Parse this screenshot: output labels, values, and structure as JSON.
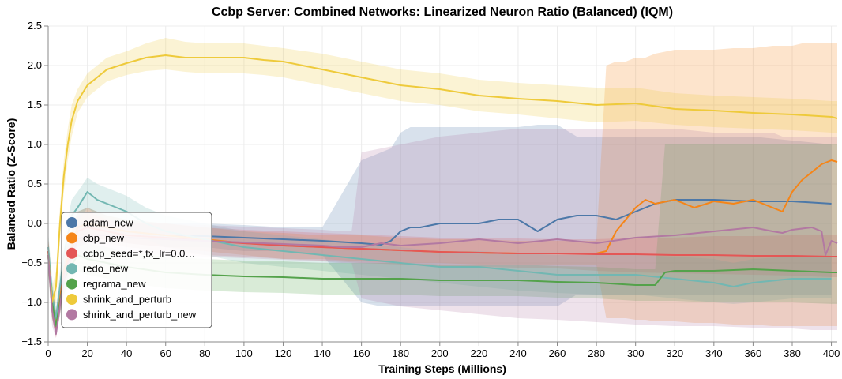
{
  "chart_data": {
    "type": "line",
    "title": "Ccbp Server: Combined Networks: Linearized Neuron Ratio (Balanced) (IQM)",
    "xlabel": "Training Steps (Millions)",
    "ylabel": "Balanced Ratio (Z-Score)",
    "xlim": [
      0,
      403
    ],
    "ylim": [
      -1.5,
      2.5
    ],
    "xticks": [
      0,
      20,
      40,
      60,
      80,
      100,
      120,
      140,
      160,
      180,
      200,
      220,
      240,
      260,
      280,
      300,
      320,
      340,
      360,
      380,
      400
    ],
    "yticks": [
      -1.5,
      -1.0,
      -0.5,
      0.0,
      0.5,
      1.0,
      1.5,
      2.0,
      2.5
    ],
    "ytick_labels": [
      "−1.5",
      "−1.0",
      "−0.5",
      "0.0",
      "0.5",
      "1.0",
      "1.5",
      "2.0",
      "2.5"
    ],
    "grid": true,
    "legend_position": "bottom-left",
    "series": [
      {
        "name": "adam_new",
        "color": "#4c78a8",
        "x": [
          0,
          2,
          4,
          8,
          15,
          20,
          30,
          40,
          60,
          80,
          100,
          120,
          140,
          160,
          170,
          175,
          180,
          185,
          190,
          200,
          210,
          220,
          230,
          240,
          250,
          260,
          270,
          280,
          290,
          300,
          310,
          320,
          340,
          360,
          380,
          400
        ],
        "y": [
          -0.4,
          -1.0,
          -1.3,
          -0.6,
          -0.05,
          0.0,
          -0.05,
          -0.1,
          -0.15,
          -0.16,
          -0.18,
          -0.2,
          -0.22,
          -0.25,
          -0.27,
          -0.22,
          -0.1,
          -0.05,
          -0.05,
          0.0,
          0.0,
          0.0,
          0.05,
          0.05,
          -0.1,
          0.05,
          0.1,
          0.1,
          0.05,
          0.15,
          0.25,
          0.3,
          0.3,
          0.28,
          0.28,
          0.25
        ],
        "lower": [
          -0.6,
          -1.2,
          -1.4,
          -0.8,
          -0.25,
          -0.2,
          -0.2,
          -0.25,
          -0.3,
          -0.3,
          -0.35,
          -0.35,
          -0.4,
          -1.0,
          -1.05,
          -1.05,
          -1.05,
          -1.05,
          -1.05,
          -1.05,
          -1.05,
          -1.05,
          -1.05,
          -1.05,
          -1.05,
          -1.05,
          -0.9,
          -0.9,
          -0.9,
          -0.9,
          -0.9,
          -0.9,
          -0.9,
          -0.9,
          -0.9,
          -0.9
        ],
        "upper": [
          -0.2,
          -0.8,
          -1.1,
          -0.4,
          0.15,
          0.2,
          0.1,
          0.05,
          0.0,
          0.0,
          -0.02,
          -0.05,
          -0.05,
          0.8,
          0.9,
          0.95,
          1.15,
          1.22,
          1.22,
          1.22,
          1.22,
          1.22,
          1.22,
          1.22,
          1.25,
          1.25,
          1.1,
          1.1,
          1.1,
          1.1,
          1.1,
          1.1,
          1.1,
          1.1,
          1.05,
          1.0
        ]
      },
      {
        "name": "cbp_new",
        "color": "#f58518",
        "x": [
          0,
          2,
          4,
          8,
          15,
          20,
          30,
          40,
          60,
          80,
          100,
          120,
          140,
          160,
          180,
          200,
          220,
          240,
          260,
          280,
          285,
          290,
          295,
          300,
          305,
          310,
          320,
          330,
          340,
          350,
          360,
          370,
          375,
          380,
          385,
          390,
          395,
          400,
          403
        ],
        "y": [
          -0.35,
          -1.0,
          -1.3,
          -0.6,
          -0.05,
          0.0,
          -0.05,
          -0.1,
          -0.15,
          -0.2,
          -0.25,
          -0.28,
          -0.3,
          -0.32,
          -0.34,
          -0.36,
          -0.37,
          -0.38,
          -0.38,
          -0.38,
          -0.35,
          -0.1,
          0.05,
          0.2,
          0.3,
          0.25,
          0.3,
          0.2,
          0.28,
          0.25,
          0.3,
          0.2,
          0.15,
          0.4,
          0.55,
          0.65,
          0.75,
          0.8,
          0.78
        ],
        "lower": [
          -0.55,
          -1.2,
          -1.4,
          -0.8,
          -0.25,
          -0.2,
          -0.2,
          -0.25,
          -0.3,
          -0.35,
          -0.4,
          -0.45,
          -0.45,
          -0.48,
          -0.5,
          -0.5,
          -0.52,
          -0.52,
          -0.52,
          -0.52,
          -1.2,
          -1.2,
          -1.2,
          -1.22,
          -1.22,
          -1.24,
          -1.24,
          -1.26,
          -1.26,
          -1.28,
          -1.28,
          -1.3,
          -1.3,
          -1.3,
          -1.3,
          -1.3,
          -1.3,
          -1.3,
          -1.3
        ],
        "upper": [
          -0.15,
          -0.8,
          -1.1,
          -0.4,
          0.15,
          0.2,
          0.1,
          0.05,
          0.0,
          -0.05,
          -0.1,
          -0.12,
          -0.15,
          -0.15,
          -0.18,
          -0.2,
          -0.2,
          -0.22,
          -0.22,
          -0.22,
          2.0,
          2.05,
          2.05,
          2.1,
          2.1,
          2.15,
          2.2,
          2.2,
          2.2,
          2.22,
          2.22,
          2.25,
          2.25,
          2.25,
          2.28,
          2.28,
          2.28,
          2.28,
          2.28
        ]
      },
      {
        "name": "ccbp_seed=*,tx_lr=0.0…",
        "color": "#e45756",
        "x": [
          0,
          2,
          4,
          8,
          15,
          20,
          30,
          40,
          60,
          80,
          100,
          120,
          140,
          160,
          180,
          200,
          220,
          240,
          260,
          280,
          300,
          320,
          340,
          360,
          380,
          400,
          403
        ],
        "y": [
          -0.35,
          -1.0,
          -1.35,
          -0.65,
          -0.1,
          -0.05,
          -0.1,
          -0.15,
          -0.18,
          -0.22,
          -0.25,
          -0.28,
          -0.3,
          -0.32,
          -0.34,
          -0.36,
          -0.37,
          -0.38,
          -0.38,
          -0.39,
          -0.39,
          -0.4,
          -0.4,
          -0.41,
          -0.41,
          -0.42,
          -0.42
        ],
        "lower": [
          -0.55,
          -1.2,
          -1.45,
          -0.85,
          -0.3,
          -0.25,
          -0.25,
          -0.3,
          -0.35,
          -0.4,
          -0.42,
          -0.45,
          -0.47,
          -0.5,
          -0.52,
          -0.54,
          -0.55,
          -0.56,
          -0.57,
          -0.6,
          -0.62,
          -0.63,
          -0.64,
          -0.65,
          -0.66,
          -0.68,
          -0.68
        ],
        "upper": [
          -0.15,
          -0.8,
          -1.15,
          -0.45,
          0.1,
          0.15,
          0.05,
          0.0,
          0.0,
          -0.05,
          -0.08,
          -0.1,
          -0.12,
          -0.14,
          -0.16,
          -0.18,
          -0.18,
          -0.19,
          -0.2,
          -0.2,
          -0.18,
          -0.18,
          -0.16,
          -0.16,
          -0.15,
          -0.15,
          -0.15
        ]
      },
      {
        "name": "redo_new",
        "color": "#72b7b2",
        "x": [
          0,
          2,
          4,
          8,
          12,
          15,
          20,
          25,
          30,
          35,
          40,
          50,
          60,
          80,
          100,
          120,
          140,
          160,
          180,
          200,
          220,
          240,
          260,
          280,
          300,
          320,
          340,
          350,
          360,
          380,
          400
        ],
        "y": [
          -0.3,
          -0.9,
          -1.2,
          -0.4,
          0.1,
          0.2,
          0.4,
          0.3,
          0.25,
          0.2,
          0.15,
          0.0,
          -0.1,
          -0.2,
          -0.3,
          -0.35,
          -0.4,
          -0.45,
          -0.5,
          -0.55,
          -0.55,
          -0.6,
          -0.65,
          -0.65,
          -0.65,
          -0.7,
          -0.75,
          -0.8,
          -0.75,
          -0.7,
          -0.7
        ],
        "lower": [
          -0.5,
          -1.1,
          -1.3,
          -0.6,
          -0.1,
          0.0,
          0.2,
          0.1,
          0.05,
          0.0,
          -0.05,
          -0.2,
          -0.3,
          -0.4,
          -0.5,
          -0.55,
          -0.6,
          -0.65,
          -0.7,
          -0.75,
          -0.8,
          -0.85,
          -0.88,
          -0.9,
          -0.9,
          -0.95,
          -1.0,
          -1.02,
          -1.0,
          -0.95,
          -0.95
        ],
        "upper": [
          -0.1,
          -0.7,
          -1.05,
          -0.2,
          0.3,
          0.4,
          0.58,
          0.5,
          0.45,
          0.4,
          0.35,
          0.2,
          0.1,
          0.0,
          -0.1,
          -0.15,
          -0.2,
          -0.25,
          -0.3,
          -0.35,
          -0.35,
          -0.38,
          -0.4,
          -0.4,
          -0.4,
          -0.42,
          -0.45,
          -0.5,
          -0.45,
          -0.42,
          -0.42
        ]
      },
      {
        "name": "regrama_new",
        "color": "#54a24b",
        "x": [
          0,
          2,
          4,
          8,
          15,
          20,
          30,
          40,
          60,
          80,
          100,
          120,
          140,
          160,
          180,
          200,
          220,
          240,
          260,
          280,
          300,
          310,
          315,
          320,
          340,
          360,
          380,
          400,
          403
        ],
        "y": [
          -0.4,
          -1.0,
          -1.3,
          -0.7,
          -0.4,
          -0.45,
          -0.5,
          -0.55,
          -0.62,
          -0.65,
          -0.67,
          -0.68,
          -0.7,
          -0.7,
          -0.7,
          -0.72,
          -0.72,
          -0.72,
          -0.74,
          -0.75,
          -0.78,
          -0.78,
          -0.62,
          -0.6,
          -0.6,
          -0.58,
          -0.6,
          -0.62,
          -0.62
        ],
        "lower": [
          -0.6,
          -1.2,
          -1.4,
          -0.9,
          -0.6,
          -0.65,
          -0.7,
          -0.75,
          -0.82,
          -0.85,
          -0.87,
          -0.88,
          -0.9,
          -0.9,
          -0.9,
          -0.92,
          -0.92,
          -0.92,
          -0.94,
          -0.95,
          -0.98,
          -0.98,
          -0.98,
          -0.98,
          -1.0,
          -1.0,
          -1.0,
          -1.02,
          -1.02
        ],
        "upper": [
          -0.2,
          -0.8,
          -1.15,
          -0.5,
          -0.2,
          -0.25,
          -0.3,
          -0.35,
          -0.42,
          -0.45,
          -0.47,
          -0.48,
          -0.5,
          -0.5,
          -0.5,
          -0.52,
          -0.52,
          -0.52,
          -0.54,
          -0.55,
          -0.58,
          -0.58,
          1.0,
          1.0,
          1.0,
          1.0,
          1.0,
          1.0,
          1.0
        ]
      },
      {
        "name": "shrink_and_perturb",
        "color": "#eeca3b",
        "x": [
          0,
          2,
          4,
          6,
          8,
          10,
          12,
          15,
          20,
          25,
          30,
          40,
          50,
          60,
          70,
          80,
          90,
          100,
          110,
          120,
          140,
          160,
          180,
          200,
          220,
          240,
          260,
          280,
          300,
          320,
          340,
          360,
          380,
          400,
          403
        ],
        "y": [
          -0.4,
          -1.0,
          -0.8,
          0.0,
          0.6,
          1.0,
          1.3,
          1.55,
          1.75,
          1.85,
          1.95,
          2.03,
          2.1,
          2.13,
          2.1,
          2.1,
          2.1,
          2.1,
          2.07,
          2.05,
          1.95,
          1.85,
          1.75,
          1.7,
          1.62,
          1.58,
          1.55,
          1.5,
          1.52,
          1.45,
          1.43,
          1.4,
          1.38,
          1.35,
          1.33
        ],
        "lower": [
          -0.6,
          -1.2,
          -1.0,
          -0.2,
          0.4,
          0.8,
          1.1,
          1.4,
          1.6,
          1.7,
          1.8,
          1.88,
          1.93,
          1.95,
          1.92,
          1.9,
          1.9,
          1.9,
          1.88,
          1.85,
          1.75,
          1.65,
          1.55,
          1.5,
          1.42,
          1.38,
          1.33,
          1.28,
          1.3,
          1.25,
          1.22,
          1.2,
          1.18,
          1.15,
          1.15
        ],
        "upper": [
          -0.2,
          -0.8,
          -0.6,
          0.2,
          0.8,
          1.2,
          1.5,
          1.7,
          1.9,
          2.0,
          2.1,
          2.18,
          2.28,
          2.35,
          2.3,
          2.28,
          2.28,
          2.28,
          2.25,
          2.22,
          2.15,
          2.05,
          1.95,
          1.9,
          1.82,
          1.78,
          1.75,
          1.72,
          1.72,
          1.65,
          1.62,
          1.6,
          1.58,
          1.55,
          1.55
        ]
      },
      {
        "name": "shrink_and_perturb_new",
        "color": "#b279a2",
        "x": [
          0,
          2,
          4,
          8,
          15,
          20,
          30,
          40,
          60,
          80,
          100,
          120,
          140,
          150,
          155,
          160,
          170,
          180,
          200,
          220,
          240,
          260,
          280,
          300,
          320,
          340,
          360,
          370,
          375,
          380,
          390,
          395,
          397,
          400,
          403
        ],
        "y": [
          -0.4,
          -1.1,
          -1.4,
          -0.7,
          -0.2,
          -0.15,
          -0.15,
          -0.18,
          -0.2,
          -0.22,
          -0.24,
          -0.26,
          -0.28,
          -0.3,
          -0.3,
          -0.3,
          -0.25,
          -0.28,
          -0.25,
          -0.2,
          -0.25,
          -0.2,
          -0.25,
          -0.18,
          -0.15,
          -0.1,
          -0.05,
          -0.1,
          -0.12,
          -0.08,
          -0.05,
          -0.1,
          -0.4,
          -0.22,
          -0.25
        ],
        "lower": [
          -0.6,
          -1.3,
          -1.45,
          -0.9,
          -0.4,
          -0.35,
          -0.35,
          -0.38,
          -0.4,
          -0.42,
          -0.44,
          -0.46,
          -0.48,
          -0.5,
          -0.5,
          -0.95,
          -1.0,
          -1.05,
          -1.1,
          -1.15,
          -1.2,
          -1.22,
          -1.25,
          -1.28,
          -1.3,
          -1.3,
          -1.32,
          -1.32,
          -1.33,
          -1.33,
          -1.35,
          -1.35,
          -1.35,
          -1.35,
          -1.35
        ],
        "upper": [
          -0.2,
          -0.9,
          -1.3,
          -0.5,
          0.0,
          0.05,
          0.05,
          0.02,
          0.0,
          -0.02,
          -0.04,
          -0.06,
          -0.08,
          -0.1,
          -0.1,
          0.9,
          0.95,
          1.0,
          1.1,
          1.15,
          1.2,
          1.2,
          1.2,
          1.2,
          1.2,
          1.15,
          1.15,
          1.15,
          1.1,
          1.1,
          1.1,
          1.1,
          1.1,
          1.1,
          1.1
        ]
      }
    ]
  }
}
